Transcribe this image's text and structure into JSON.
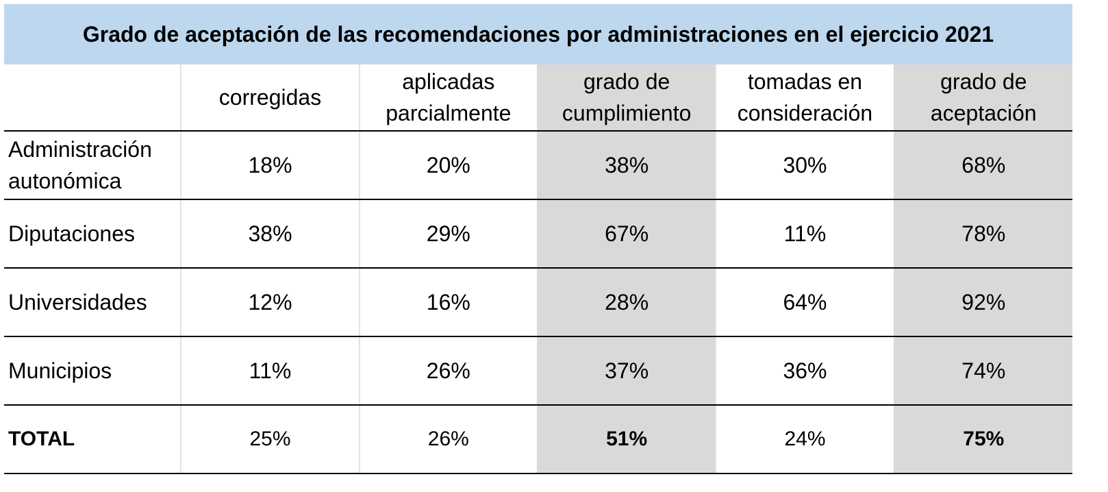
{
  "title": "Grado de aceptación de las recomendaciones por administraciones en el ejercicio 2021",
  "header": {
    "blank": "",
    "columns": [
      {
        "line1": "corregidas",
        "line2": ""
      },
      {
        "line1": "aplicadas",
        "line2": "parcialmente"
      },
      {
        "line1": "grado de",
        "line2": "cumplimiento"
      },
      {
        "line1": "tomadas en",
        "line2": "consideración"
      },
      {
        "line1": "grado de",
        "line2": "aceptación"
      }
    ]
  },
  "rows": [
    {
      "label1": "Administración",
      "label2": "autonómica",
      "values": [
        "18%",
        "20%",
        "38%",
        "30%",
        "68%"
      ]
    },
    {
      "label1": "Diputaciones",
      "label2": "",
      "values": [
        "38%",
        "29%",
        "67%",
        "11%",
        "78%"
      ]
    },
    {
      "label1": "Universidades",
      "label2": "",
      "values": [
        "12%",
        "16%",
        "28%",
        "64%",
        "92%"
      ]
    },
    {
      "label1": "Municipios",
      "label2": "",
      "values": [
        "11%",
        "26%",
        "37%",
        "36%",
        "74%"
      ]
    }
  ],
  "total": {
    "label": "TOTAL",
    "values": [
      "25%",
      "26%",
      "51%",
      "24%",
      "75%"
    ]
  },
  "colors": {
    "title_bg": "#bdd7ee",
    "shaded_column_bg": "#d9d9d9"
  }
}
